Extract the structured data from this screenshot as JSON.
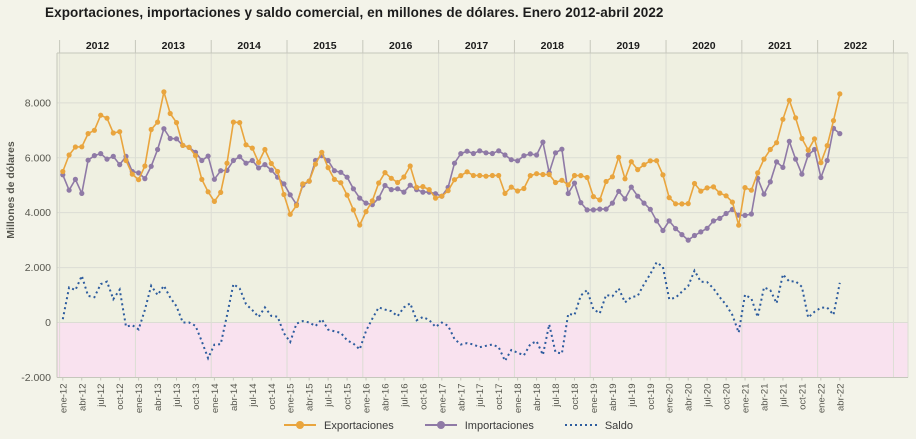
{
  "title": "Exportaciones, importaciones y saldo comercial, en millones de dólares. Enero 2012-abril 2022",
  "y_axis": {
    "label": "Millones de dólares",
    "tick_labels": [
      "8.000",
      "6.000",
      "4.000",
      "2.000",
      "0",
      "-2.000"
    ],
    "tick_values": [
      8000,
      6000,
      4000,
      2000,
      0,
      -2000
    ]
  },
  "x_axis": {
    "year_labels": [
      "2012",
      "2013",
      "2014",
      "2015",
      "2016",
      "2017",
      "2018",
      "2019",
      "2020",
      "2021",
      "2022"
    ],
    "quarter_tick_labels": [
      "ene-12",
      "abr-12",
      "jul-12",
      "oct-12",
      "ene-13",
      "abr-13",
      "jul-13",
      "oct-13",
      "ene-14",
      "abr-14",
      "jul-14",
      "oct-14",
      "ene-15",
      "abr-15",
      "jul-15",
      "oct-15",
      "ene-16",
      "abr-16",
      "jul-16",
      "oct-16",
      "ene-17",
      "abr-17",
      "jul-17",
      "oct-17",
      "ene-18",
      "abr-18",
      "jul-18",
      "oct-18",
      "ene-19",
      "abr-19",
      "jul-19",
      "oct-19",
      "ene-20",
      "abr-20",
      "jul-20",
      "oct-20",
      "ene-21",
      "abr-21",
      "jul-21",
      "oct-21",
      "ene-22",
      "abr-22"
    ]
  },
  "legend": {
    "items": [
      {
        "label": "Exportaciones",
        "color": "#e9a53e",
        "style": "line-dot"
      },
      {
        "label": "Importaciones",
        "color": "#8f7aa6",
        "style": "line-dot"
      },
      {
        "label": "Saldo",
        "color": "#2d5c9e",
        "style": "dotted"
      }
    ]
  },
  "colors": {
    "page_bg": "#f3f3e9",
    "plot_bg": "#eff0e1",
    "deficit_band": "#f9e2ef",
    "gridline": "#dcddd4",
    "axis_line": "#c6c7bc",
    "exportaciones": "#e9a53e",
    "importaciones": "#8f7aa6",
    "saldo": "#2d5c9e",
    "axis_text": "#56564e",
    "title_text": "#1c1c1c"
  },
  "chart_data": {
    "type": "line",
    "title": "Exportaciones, importaciones y saldo comercial, en millones de dólares. Enero 2012-abril 2022",
    "ylabel": "Millones de dólares",
    "unit": "millones de dólares",
    "x_start": "ene-12",
    "x_end": "abr-22",
    "x_frequency": "monthly",
    "n_points": 124,
    "ylim": [
      -2000,
      9800
    ],
    "grid": true,
    "legend_position": "bottom",
    "deficit_band": {
      "from": 0,
      "to": -2000,
      "color": "#f9e2ef"
    },
    "series": [
      {
        "name": "Exportaciones",
        "color": "#e9a53e",
        "marker": "circle",
        "line": "solid",
        "values": [
          5500,
          6100,
          6390,
          6400,
          6880,
          7000,
          7550,
          7440,
          6900,
          6950,
          5900,
          5400,
          5200,
          5700,
          7030,
          7300,
          8400,
          7610,
          7280,
          6450,
          6380,
          6080,
          5210,
          4760,
          4410,
          4740,
          5800,
          7300,
          7280,
          6470,
          6350,
          5830,
          6300,
          5790,
          5500,
          4660,
          3940,
          4260,
          5050,
          5150,
          5770,
          6200,
          5640,
          5210,
          5090,
          4640,
          4100,
          3550,
          4040,
          4430,
          5080,
          5460,
          5250,
          5100,
          5300,
          5700,
          4920,
          4950,
          4840,
          4530,
          4600,
          4800,
          5200,
          5350,
          5490,
          5355,
          5355,
          5330,
          5355,
          5355,
          4700,
          4930,
          4790,
          4880,
          5350,
          5420,
          5390,
          5390,
          5100,
          5180,
          5013,
          5355,
          5350,
          5280,
          4586,
          4464,
          5136,
          5305,
          6017,
          5232,
          5856,
          5568,
          5746,
          5889,
          5893,
          5374,
          4549,
          4324,
          4320,
          4329,
          5061,
          4786,
          4903,
          4938,
          4711,
          4616,
          4386,
          3545,
          4912,
          4820,
          5450,
          5950,
          6300,
          6550,
          7400,
          8093,
          7450,
          6700,
          6280,
          6690,
          5820,
          6443,
          7352,
          8327
        ]
      },
      {
        "name": "Importaciones",
        "color": "#8f7aa6",
        "marker": "circle",
        "line": "solid",
        "values": [
          5380,
          4820,
          5210,
          4700,
          5910,
          6080,
          6150,
          5950,
          6050,
          5750,
          6050,
          5500,
          5450,
          5240,
          5690,
          6300,
          7060,
          6700,
          6690,
          6450,
          6380,
          6200,
          5900,
          6060,
          5215,
          5530,
          5540,
          5900,
          6040,
          5800,
          5900,
          5630,
          5750,
          5550,
          5290,
          5050,
          4650,
          4300,
          5000,
          5150,
          5900,
          6080,
          5900,
          5530,
          5470,
          5290,
          4870,
          4530,
          4350,
          4290,
          4530,
          4990,
          4840,
          4870,
          4750,
          5000,
          4840,
          4750,
          4750,
          4690,
          4600,
          4920,
          5800,
          6150,
          6240,
          6155,
          6255,
          6180,
          6155,
          6255,
          6100,
          5930,
          5890,
          6075,
          6140,
          6100,
          6570,
          5460,
          6180,
          6310,
          4699,
          5077,
          4365,
          4100,
          4100,
          4130,
          4130,
          4350,
          4780,
          4500,
          4930,
          4600,
          4350,
          4121,
          3700,
          3350,
          3700,
          3420,
          3200,
          3000,
          3170,
          3300,
          3430,
          3700,
          3793,
          3970,
          4115,
          3913,
          3900,
          3950,
          5250,
          4673,
          5120,
          5850,
          5650,
          6600,
          5950,
          5400,
          6100,
          6300,
          5280,
          5900,
          7070,
          6880
        ]
      },
      {
        "name": "Saldo",
        "color": "#2d5c9e",
        "marker": "none",
        "line": "dotted",
        "values": [
          120,
          1280,
          1180,
          1700,
          970,
          920,
          1400,
          1490,
          850,
          1200,
          -150,
          -100,
          -250,
          460,
          1340,
          1000,
          1340,
          910,
          590,
          0,
          0,
          -120,
          -690,
          -1300,
          -805,
          -790,
          260,
          1400,
          1240,
          670,
          450,
          200,
          550,
          240,
          210,
          -390,
          -710,
          -40,
          50,
          0,
          -130,
          120,
          -260,
          -320,
          -380,
          -650,
          -770,
          -980,
          -310,
          140,
          550,
          470,
          410,
          230,
          550,
          700,
          80,
          200,
          90,
          -160,
          0,
          -120,
          -600,
          -800,
          -750,
          -800,
          -900,
          -850,
          -800,
          -900,
          -1400,
          -1000,
          -1100,
          -1195,
          -790,
          -680,
          -1180,
          -70,
          -1080,
          -1130,
          314,
          278,
          985,
          1180,
          486,
          334,
          1006,
          955,
          1237,
          732,
          926,
          968,
          1396,
          1768,
          2193,
          2024,
          849,
          904,
          1120,
          1329,
          1891,
          1486,
          1473,
          1238,
          918,
          646,
          271,
          -368,
          1012,
          870,
          200,
          1277,
          1180,
          700,
          1750,
          1493,
          1500,
          1300,
          180,
          390,
          540,
          543,
          282,
          1447
        ]
      }
    ]
  }
}
